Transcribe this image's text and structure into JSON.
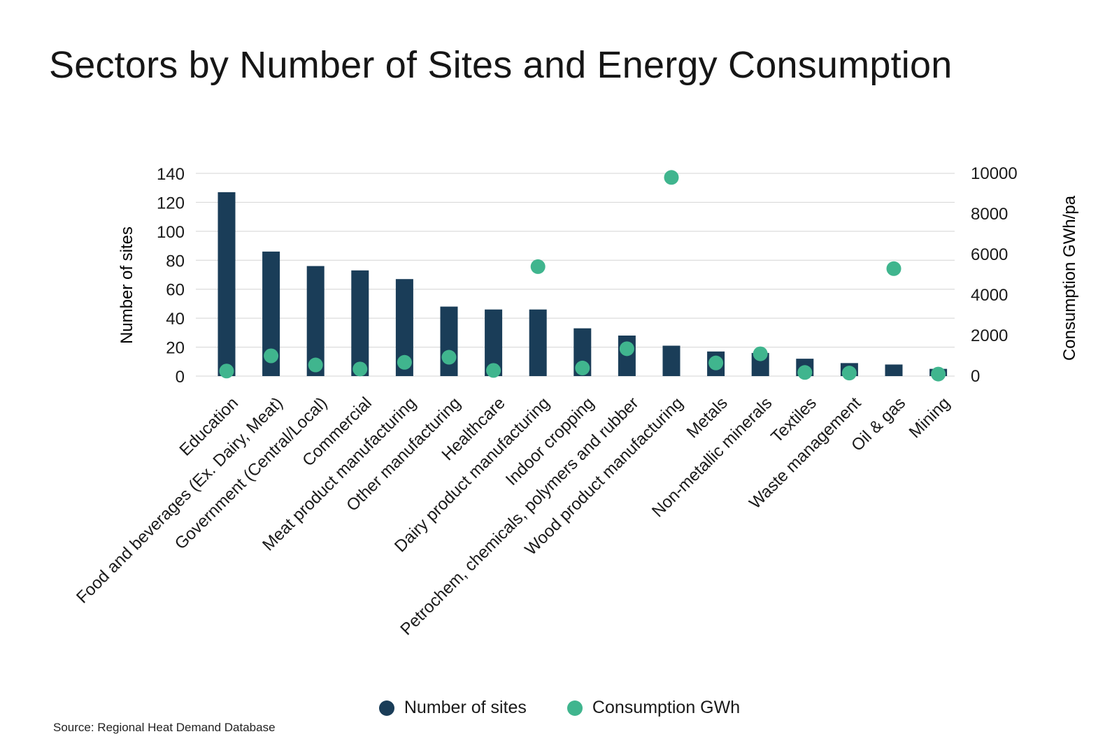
{
  "colors": {
    "bar": "#1a3d58",
    "dot": "#40b58e",
    "grid": "#d4d4d4",
    "text": "#1a1a1a"
  },
  "legend": {
    "sites_label": "Number of sites",
    "consumption_label": "Consumption GWh"
  },
  "source": "Source: Regional Heat Demand Database",
  "chart_data": {
    "type": "bar",
    "title": "Sectors by Number of Sites and Energy Consumption",
    "categories": [
      "Education",
      "Food and beverages (Ex. Dairy, Meat)",
      "Government (Central/Local)",
      "Commercial",
      "Meat product manufacturing",
      "Other manufacturing",
      "Healthcare",
      "Dairy product manufacturing",
      "Indoor cropping",
      "Petrochem, chemicals, polymers and rubber",
      "Wood product manufacturing",
      "Metals",
      "Non-metallic minerals",
      "Textiles",
      "Waste management",
      "Oil & gas",
      "Mining"
    ],
    "series": [
      {
        "name": "Number of sites",
        "type": "bar",
        "axis": "left",
        "values": [
          127,
          86,
          76,
          73,
          67,
          48,
          46,
          46,
          33,
          28,
          21,
          17,
          16,
          12,
          9,
          8,
          5
        ]
      },
      {
        "name": "Consumption GWh",
        "type": "scatter",
        "axis": "right",
        "values": [
          250,
          1000,
          550,
          350,
          680,
          930,
          280,
          5400,
          400,
          1350,
          9800,
          650,
          1100,
          180,
          150,
          5300,
          100
        ]
      }
    ],
    "ylabel": "Number of sites",
    "ylim": [
      0,
      140
    ],
    "yticks": [
      0,
      20,
      40,
      60,
      80,
      100,
      120,
      140
    ],
    "y2label": "Consumption GWh/pa",
    "y2lim": [
      0,
      10000
    ],
    "y2ticks": [
      0,
      2000,
      4000,
      6000,
      8000,
      10000
    ],
    "grid": true,
    "legend_position": "bottom-center"
  }
}
